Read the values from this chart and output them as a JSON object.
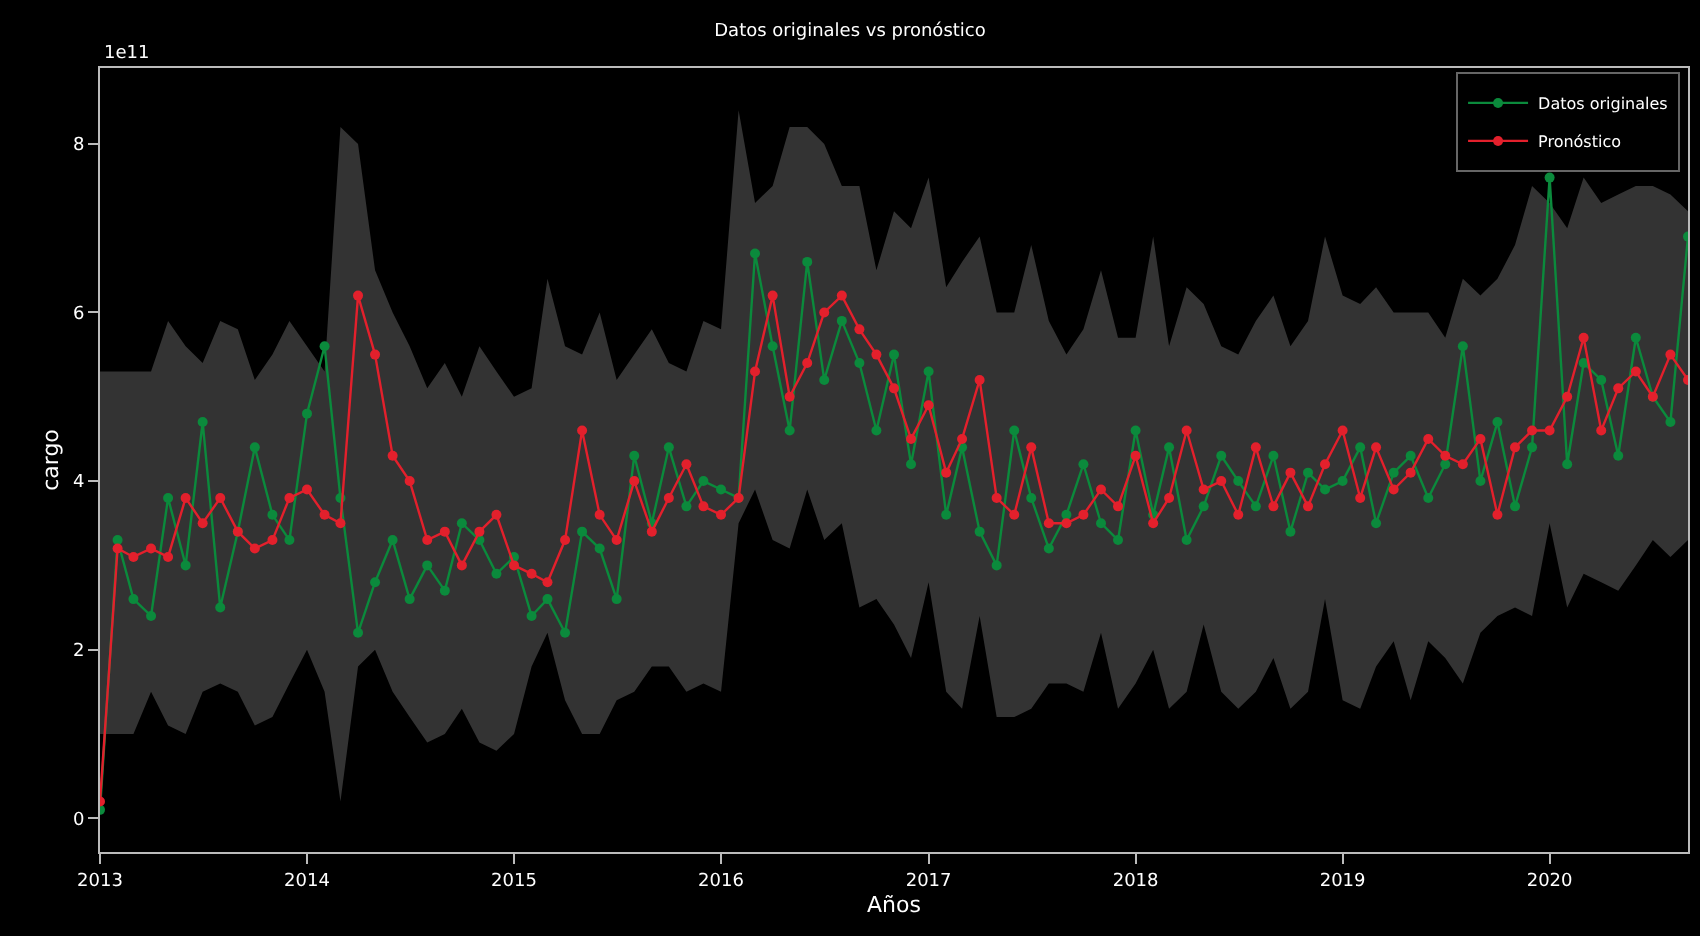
{
  "chart_data": {
    "type": "line",
    "title": "Datos originales vs pronóstico",
    "xlabel": "Años",
    "ylabel": "cargo",
    "annotations": [
      "1e11"
    ],
    "x": [
      "2013-01",
      "2013-02",
      "2013-03",
      "2013-04",
      "2013-05",
      "2013-06",
      "2013-07",
      "2013-08",
      "2013-09",
      "2013-10",
      "2013-11",
      "2013-12",
      "2014-01",
      "2014-02",
      "2014-03",
      "2014-04",
      "2014-05",
      "2014-06",
      "2014-07",
      "2014-08",
      "2014-09",
      "2014-10",
      "2014-11",
      "2014-12",
      "2015-01",
      "2015-02",
      "2015-03",
      "2015-04",
      "2015-05",
      "2015-06",
      "2015-07",
      "2015-08",
      "2015-09",
      "2015-10",
      "2015-11",
      "2015-12",
      "2016-01",
      "2016-02",
      "2016-03",
      "2016-04",
      "2016-05",
      "2016-06",
      "2016-07",
      "2016-08",
      "2016-09",
      "2016-10",
      "2016-11",
      "2016-12",
      "2017-01",
      "2017-02",
      "2017-03",
      "2017-04",
      "2017-05",
      "2017-06",
      "2017-07",
      "2017-08",
      "2017-09",
      "2017-10",
      "2017-11",
      "2017-12",
      "2018-01",
      "2018-02",
      "2018-03",
      "2018-04",
      "2018-05",
      "2018-06",
      "2018-07",
      "2018-08",
      "2018-09",
      "2018-10",
      "2018-11",
      "2018-12",
      "2019-01",
      "2019-02",
      "2019-03",
      "2019-04",
      "2019-05",
      "2019-06",
      "2019-07",
      "2019-08",
      "2019-09",
      "2019-10",
      "2019-11",
      "2019-12",
      "2020-01",
      "2020-02",
      "2020-03",
      "2020-04",
      "2020-05",
      "2020-06",
      "2020-07",
      "2020-08",
      "2020-09"
    ],
    "series": [
      {
        "name": "Datos originales",
        "color": "#0b8a3c",
        "values": [
          0.1,
          3.3,
          2.6,
          2.4,
          3.8,
          3.0,
          4.7,
          2.5,
          3.4,
          4.4,
          3.6,
          3.3,
          4.8,
          5.6,
          3.8,
          2.2,
          2.8,
          3.3,
          2.6,
          3.0,
          2.7,
          3.5,
          3.3,
          2.9,
          3.1,
          2.4,
          2.6,
          2.2,
          3.4,
          3.2,
          2.6,
          4.3,
          3.5,
          4.4,
          3.7,
          4.0,
          3.9,
          3.8,
          6.7,
          5.6,
          4.6,
          6.6,
          5.2,
          5.9,
          5.4,
          4.6,
          5.5,
          4.2,
          5.3,
          3.6,
          4.4,
          3.4,
          3.0,
          4.6,
          3.8,
          3.2,
          3.6,
          4.2,
          3.5,
          3.3,
          4.6,
          3.6,
          4.4,
          3.3,
          3.7,
          4.3,
          4.0,
          3.7,
          4.3,
          3.4,
          4.1,
          3.9,
          4.0,
          4.4,
          3.5,
          4.1,
          4.3,
          3.8,
          4.2,
          5.6,
          4.0,
          4.7,
          3.7,
          4.4,
          7.6,
          4.2,
          5.4,
          5.2,
          4.3,
          5.7,
          5.0,
          4.7,
          6.9
        ]
      },
      {
        "name": "Pronóstico",
        "color": "#e3202c",
        "values": [
          0.2,
          3.2,
          3.1,
          3.2,
          3.1,
          3.8,
          3.5,
          3.8,
          3.4,
          3.2,
          3.3,
          3.8,
          3.9,
          3.6,
          3.5,
          6.2,
          5.5,
          4.3,
          4.0,
          3.3,
          3.4,
          3.0,
          3.4,
          3.6,
          3.0,
          2.9,
          2.8,
          3.3,
          4.6,
          3.6,
          3.3,
          4.0,
          3.4,
          3.8,
          4.2,
          3.7,
          3.6,
          3.8,
          5.3,
          6.2,
          5.0,
          5.4,
          6.0,
          6.2,
          5.8,
          5.5,
          5.1,
          4.5,
          4.9,
          4.1,
          4.5,
          5.2,
          3.8,
          3.6,
          4.4,
          3.5,
          3.5,
          3.6,
          3.9,
          3.7,
          4.3,
          3.5,
          3.8,
          4.6,
          3.9,
          4.0,
          3.6,
          4.4,
          3.7,
          4.1,
          3.7,
          4.2,
          4.6,
          3.8,
          4.4,
          3.9,
          4.1,
          4.5,
          4.3,
          4.2,
          4.5,
          3.6,
          4.4,
          4.6,
          4.6,
          5.0,
          5.7,
          4.6,
          5.1,
          5.3,
          5.0,
          5.5,
          5.2
        ],
        "lower": [
          1.0,
          1.0,
          1.0,
          1.5,
          1.1,
          1.0,
          1.5,
          1.6,
          1.5,
          1.1,
          1.2,
          1.6,
          2.0,
          1.5,
          0.2,
          1.8,
          2.0,
          1.5,
          1.2,
          0.9,
          1.0,
          1.3,
          0.9,
          0.8,
          1.0,
          1.8,
          2.2,
          1.4,
          1.0,
          1.0,
          1.4,
          1.5,
          1.8,
          1.8,
          1.5,
          1.6,
          1.5,
          3.5,
          3.9,
          3.3,
          3.2,
          3.9,
          3.3,
          3.5,
          2.5,
          2.6,
          2.3,
          1.9,
          2.8,
          1.5,
          1.3,
          2.4,
          1.2,
          1.2,
          1.3,
          1.6,
          1.6,
          1.5,
          2.2,
          1.3,
          1.6,
          2.0,
          1.3,
          1.5,
          2.3,
          1.5,
          1.3,
          1.5,
          1.9,
          1.3,
          1.5,
          2.6,
          1.4,
          1.3,
          1.8,
          2.1,
          1.4,
          2.1,
          1.9,
          1.6,
          2.2,
          2.4,
          2.5,
          2.4,
          3.5,
          2.5,
          2.9,
          2.8,
          2.7,
          3.0,
          3.3,
          3.1,
          3.3
        ],
        "upper": [
          5.3,
          5.3,
          5.3,
          5.3,
          5.9,
          5.6,
          5.4,
          5.9,
          5.8,
          5.2,
          5.5,
          5.9,
          5.6,
          5.3,
          8.2,
          8.0,
          6.5,
          6.0,
          5.6,
          5.1,
          5.4,
          5.0,
          5.6,
          5.3,
          5.0,
          5.1,
          6.4,
          5.6,
          5.5,
          6.0,
          5.2,
          5.5,
          5.8,
          5.4,
          5.3,
          5.9,
          5.8,
          8.4,
          7.3,
          7.5,
          8.2,
          8.2,
          8.0,
          7.5,
          7.5,
          6.5,
          7.2,
          7.0,
          7.6,
          6.3,
          6.6,
          6.9,
          6.0,
          6.0,
          6.8,
          5.9,
          5.5,
          5.8,
          6.5,
          5.7,
          5.7,
          6.9,
          5.6,
          6.3,
          6.1,
          5.6,
          5.5,
          5.9,
          6.2,
          5.6,
          5.9,
          6.9,
          6.2,
          6.1,
          6.3,
          6.0,
          6.0,
          6.0,
          5.7,
          6.4,
          6.2,
          6.4,
          6.8,
          7.5,
          7.3,
          7.0,
          7.6,
          7.3,
          7.4,
          7.5,
          7.5,
          7.4,
          7.2
        ]
      }
    ],
    "xlim": [
      "2013-01",
      "2020-09"
    ],
    "xticks": [
      {
        "value": "2013",
        "label": "2013"
      },
      {
        "value": "2014",
        "label": "2014"
      },
      {
        "value": "2015",
        "label": "2015"
      },
      {
        "value": "2016",
        "label": "2016"
      },
      {
        "value": "2017",
        "label": "2017"
      },
      {
        "value": "2018",
        "label": "2018"
      },
      {
        "value": "2019",
        "label": "2019"
      },
      {
        "value": "2020",
        "label": "2020"
      }
    ],
    "ylim": [
      -0.4,
      8.9
    ],
    "yticks": [
      0,
      2,
      4,
      6,
      8
    ],
    "grid": false,
    "legend": "top right",
    "marker": "circle",
    "line_style": "solid"
  }
}
